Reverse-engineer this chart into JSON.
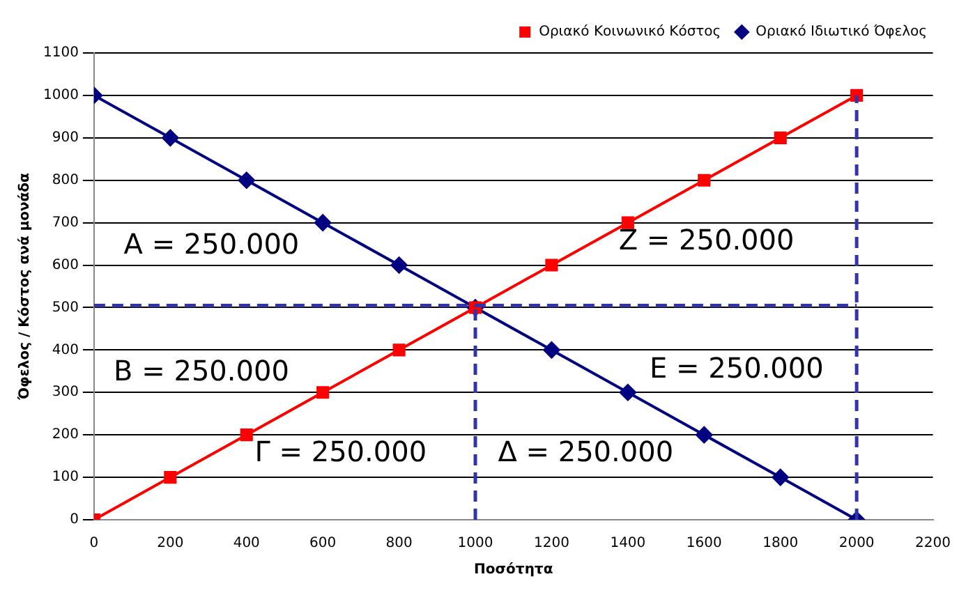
{
  "chart_data": {
    "type": "line",
    "xlabel": "Ποσότητα",
    "ylabel": "Όφελος / Κόστος ανά μονάδα",
    "x": [
      0,
      200,
      400,
      600,
      800,
      1000,
      1200,
      1400,
      1600,
      1800,
      2000
    ],
    "series": [
      {
        "name": "Οριακό Ιδιωτικό Όφελος",
        "color": "#000080",
        "marker": "diamond",
        "values": [
          1000,
          900,
          800,
          700,
          600,
          500,
          400,
          300,
          200,
          100,
          0
        ]
      },
      {
        "name": "Οριακό Κοινωνικό Κόστος",
        "color": "#ff0000",
        "marker": "square",
        "values": [
          0,
          100,
          200,
          300,
          400,
          500,
          600,
          700,
          800,
          900,
          1000
        ]
      },
      {
        "color": "#3333aa",
        "marker": "none",
        "line_style": "dashed",
        "x": [
          0,
          2000
        ],
        "values": [
          505,
          505
        ]
      },
      {
        "color": "#3333aa",
        "marker": "none",
        "line_style": "dashed",
        "x": [
          1000,
          1000
        ],
        "values": [
          0,
          505
        ]
      },
      {
        "color": "#3333aa",
        "marker": "none",
        "line_style": "dashed",
        "x": [
          2000,
          2000
        ],
        "values": [
          0,
          1000
        ]
      }
    ],
    "xlim": [
      0,
      2200
    ],
    "xticks": [
      0,
      200,
      400,
      600,
      800,
      1000,
      1200,
      1400,
      1600,
      1800,
      2000,
      2200
    ],
    "ylim": [
      0,
      1100
    ],
    "yticks": [
      0,
      100,
      200,
      300,
      400,
      500,
      600,
      700,
      800,
      900,
      1000,
      1100
    ],
    "grid": "y",
    "legend": "top right",
    "line_style": "solid",
    "annotations": [
      "A = 250.000",
      "Z = 250.000",
      "B = 250.000",
      "E = 250.000",
      "Γ = 250.000",
      "Δ = 250.000"
    ]
  }
}
